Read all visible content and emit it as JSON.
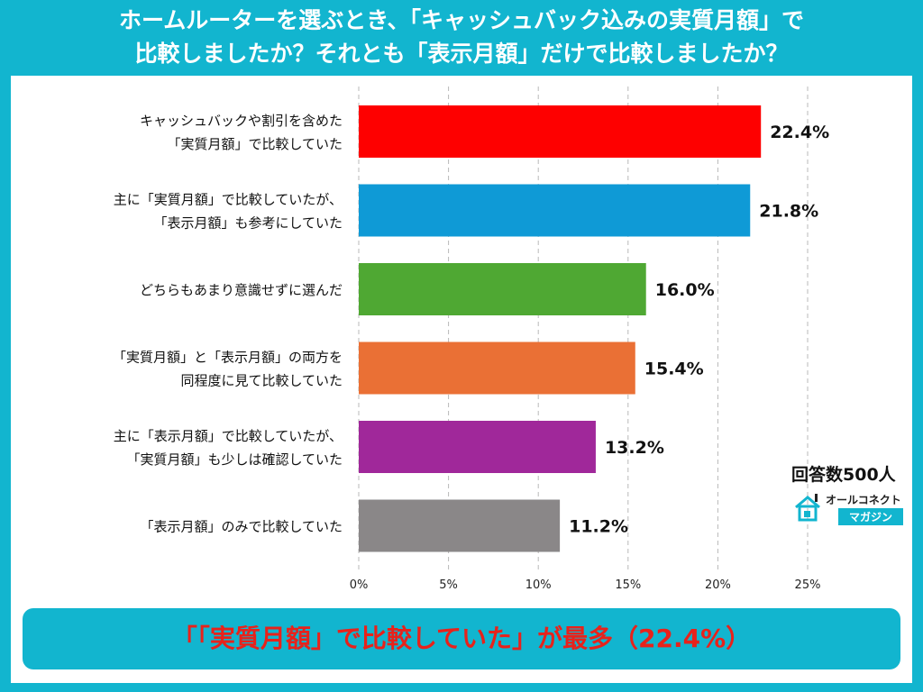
{
  "title": {
    "line1": "ホームルーターを選ぶとき、「キャッシュバック込みの実質月額」で",
    "line2": "比較しましたか？それとも「表示月額」だけで比較しましたか？"
  },
  "respondents": "回答数500人",
  "brand": {
    "name": "オールコネクト",
    "sub": "マガジン"
  },
  "banner": "「「実質月額」で比較していた」が最多（22.4%）",
  "colors": {
    "background": "#12b5cf",
    "banner_text": "#e8221b"
  },
  "chart_data": {
    "type": "bar",
    "orientation": "horizontal",
    "categories": [
      [
        "キャッシュバックや割引を含めた",
        "「実質月額」で比較していた"
      ],
      [
        "主に「実質月額」で比較していたが、",
        "「表示月額」も参考にしていた"
      ],
      [
        "どちらもあまり意識せずに選んだ"
      ],
      [
        "「実質月額」と「表示月額」の両方を",
        "同程度に見て比較していた"
      ],
      [
        "主に「表示月額」で比較していたが、",
        "「実質月額」も少しは確認していた"
      ],
      [
        "「表示月額」のみで比較していた"
      ]
    ],
    "values": [
      22.4,
      21.8,
      16.0,
      15.4,
      13.2,
      11.2
    ],
    "data_labels": [
      "22.4%",
      "21.8%",
      "16.0%",
      "15.4%",
      "13.2%",
      "11.2%"
    ],
    "colors": [
      "#fe0000",
      "#0f9ad6",
      "#4fa833",
      "#ea7035",
      "#a0289a",
      "#8a8788"
    ],
    "xlim": [
      0,
      25
    ],
    "xticks": [
      "0%",
      "5%",
      "10%",
      "15%",
      "20%",
      "25%"
    ],
    "grid": true
  }
}
